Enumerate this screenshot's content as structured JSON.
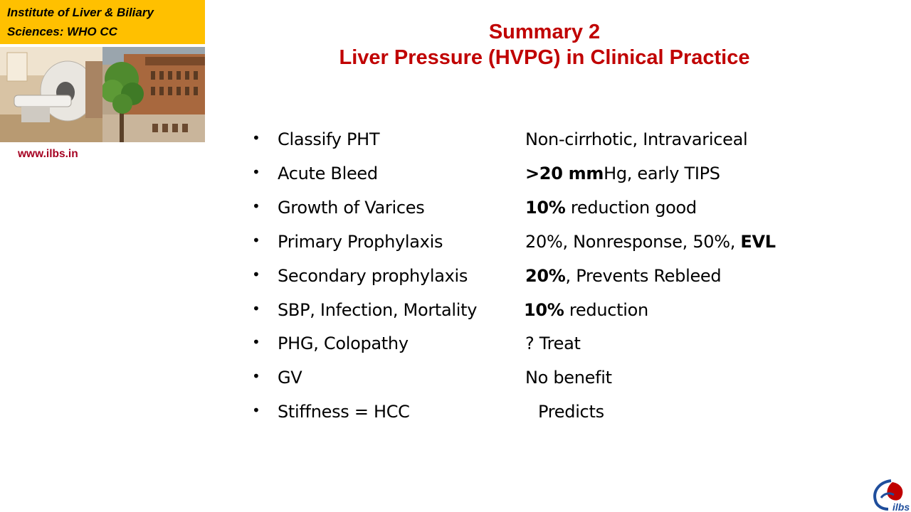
{
  "institute": {
    "line1": "Institute  of Liver & Biliary",
    "line2": "Sciences: WHO CC",
    "website": "www.ilbs.in"
  },
  "title": {
    "line1": "Summary 2",
    "line2": "Liver Pressure (HVPG) in Clinical Practice"
  },
  "rows": [
    {
      "bullet": "•",
      "label": "Classify PHT",
      "value": [
        {
          "t": "Non-cirrhotic, Intravariceal",
          "b": false
        }
      ]
    },
    {
      "bullet": "•",
      "label": "Acute Bleed",
      "value": [
        {
          "t": ">20 mm",
          "b": true
        },
        {
          "t": "Hg, early TIPS",
          "b": false
        }
      ]
    },
    {
      "bullet": "•",
      "label": "Growth of Varices",
      "value": [
        {
          "t": "10%",
          "b": true
        },
        {
          "t": " reduction good",
          "b": false
        }
      ]
    },
    {
      "bullet": "•",
      "label": "Primary Prophylaxis",
      "value": [
        {
          "t": "20%, Nonresponse, 50%, ",
          "b": false
        },
        {
          "t": "EVL",
          "b": true
        }
      ]
    },
    {
      "bullet": "•",
      "label": "Secondary prophylaxis",
      "value": [
        {
          "t": "20%",
          "b": true
        },
        {
          "t": ", Prevents Rebleed",
          "b": false
        }
      ]
    },
    {
      "bullet": "•",
      "label": "SBP, Infection, Mortality",
      "value": [
        {
          "t": "10%",
          "b": true
        },
        {
          "t": " reduction",
          "b": false
        }
      ]
    },
    {
      "bullet": "•",
      "label": "PHG, Colopathy",
      "value": [
        {
          "t": "? Treat",
          "b": false
        }
      ]
    },
    {
      "bullet": "•",
      "label": "GV",
      "value": [
        {
          "t": "No benefit",
          "b": false
        }
      ]
    },
    {
      "bullet": "•",
      "label": "Stiffness = HCC",
      "value": [
        {
          "t": "Predicts",
          "b": false
        }
      ]
    }
  ],
  "logo": {
    "icon": "ilbs-logo-icon",
    "text": "ilbs"
  },
  "colors": {
    "header_bg": "#ffc000",
    "title": "#c00000",
    "website": "#a50021",
    "logo_blue": "#1f4e9c",
    "logo_red": "#c00000"
  }
}
